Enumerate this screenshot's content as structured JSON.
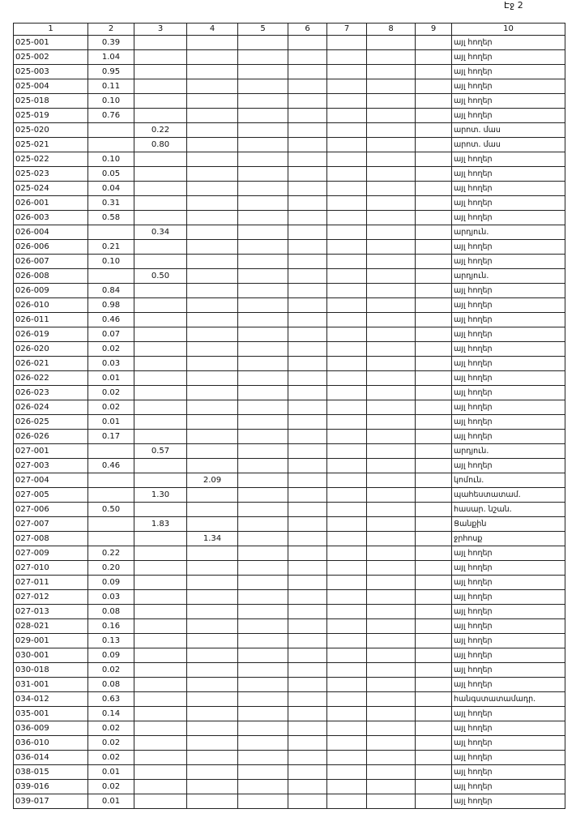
{
  "page_label": "Էջ 2",
  "table": {
    "header": [
      "1",
      "2",
      "3",
      "4",
      "5",
      "6",
      "7",
      "8",
      "9",
      "10"
    ],
    "rows": [
      [
        "025-001",
        "0.39",
        null,
        null,
        null,
        null,
        null,
        null,
        null,
        "այլ հողեր"
      ],
      [
        "025-002",
        "1.04",
        null,
        null,
        null,
        null,
        null,
        null,
        null,
        "այլ հողեր"
      ],
      [
        "025-003",
        "0.95",
        null,
        null,
        null,
        null,
        null,
        null,
        null,
        "այլ հողեր"
      ],
      [
        "025-004",
        "0.11",
        null,
        null,
        null,
        null,
        null,
        null,
        null,
        "այլ հողեր"
      ],
      [
        "025-018",
        "0.10",
        null,
        null,
        null,
        null,
        null,
        null,
        null,
        "այլ հողեր"
      ],
      [
        "025-019",
        "0.76",
        null,
        null,
        null,
        null,
        null,
        null,
        null,
        "այլ հողեր"
      ],
      [
        "025-020",
        null,
        "0.22",
        null,
        null,
        null,
        null,
        null,
        null,
        "արոտ. մաս"
      ],
      [
        "025-021",
        null,
        "0.80",
        null,
        null,
        null,
        null,
        null,
        null,
        "արոտ. մաս"
      ],
      [
        "025-022",
        "0.10",
        null,
        null,
        null,
        null,
        null,
        null,
        null,
        "այլ հողեր"
      ],
      [
        "025-023",
        "0.05",
        null,
        null,
        null,
        null,
        null,
        null,
        null,
        "այլ հողեր"
      ],
      [
        "025-024",
        "0.04",
        null,
        null,
        null,
        null,
        null,
        null,
        null,
        "այլ հողեր"
      ],
      [
        "026-001",
        "0.31",
        null,
        null,
        null,
        null,
        null,
        null,
        null,
        "այլ հողեր"
      ],
      [
        "026-003",
        "0.58",
        null,
        null,
        null,
        null,
        null,
        null,
        null,
        "այլ հողեր"
      ],
      [
        "026-004",
        null,
        "0.34",
        null,
        null,
        null,
        null,
        null,
        null,
        "արդյուն."
      ],
      [
        "026-006",
        "0.21",
        null,
        null,
        null,
        null,
        null,
        null,
        null,
        "այլ հողեր"
      ],
      [
        "026-007",
        "0.10",
        null,
        null,
        null,
        null,
        null,
        null,
        null,
        "այլ հողեր"
      ],
      [
        "026-008",
        null,
        "0.50",
        null,
        null,
        null,
        null,
        null,
        null,
        "արդյուն."
      ],
      [
        "026-009",
        "0.84",
        null,
        null,
        null,
        null,
        null,
        null,
        null,
        "այլ հողեր"
      ],
      [
        "026-010",
        "0.98",
        null,
        null,
        null,
        null,
        null,
        null,
        null,
        "այլ հողեր"
      ],
      [
        "026-011",
        "0.46",
        null,
        null,
        null,
        null,
        null,
        null,
        null,
        "այլ հողեր"
      ],
      [
        "026-019",
        "0.07",
        null,
        null,
        null,
        null,
        null,
        null,
        null,
        "այլ հողեր"
      ],
      [
        "026-020",
        "0.02",
        null,
        null,
        null,
        null,
        null,
        null,
        null,
        "այլ հողեր"
      ],
      [
        "026-021",
        "0.03",
        null,
        null,
        null,
        null,
        null,
        null,
        null,
        "այլ հողեր"
      ],
      [
        "026-022",
        "0.01",
        null,
        null,
        null,
        null,
        null,
        null,
        null,
        "այլ հողեր"
      ],
      [
        "026-023",
        "0.02",
        null,
        null,
        null,
        null,
        null,
        null,
        null,
        "այլ հողեր"
      ],
      [
        "026-024",
        "0.02",
        null,
        null,
        null,
        null,
        null,
        null,
        null,
        "այլ հողեր"
      ],
      [
        "026-025",
        "0.01",
        null,
        null,
        null,
        null,
        null,
        null,
        null,
        "այլ հողեր"
      ],
      [
        "026-026",
        "0.17",
        null,
        null,
        null,
        null,
        null,
        null,
        null,
        "այլ հողեր"
      ],
      [
        "027-001",
        null,
        "0.57",
        null,
        null,
        null,
        null,
        null,
        null,
        "արդյուն."
      ],
      [
        "027-003",
        "0.46",
        null,
        null,
        null,
        null,
        null,
        null,
        null,
        "այլ հողեր"
      ],
      [
        "027-004",
        null,
        null,
        "2.09",
        null,
        null,
        null,
        null,
        null,
        "կոմուն."
      ],
      [
        "027-005",
        null,
        "1.30",
        null,
        null,
        null,
        null,
        null,
        null,
        "պահեստատամ."
      ],
      [
        "027-006",
        "0.50",
        null,
        null,
        null,
        null,
        null,
        null,
        null,
        "հասար. նշան."
      ],
      [
        "027-007",
        null,
        "1.83",
        null,
        null,
        null,
        null,
        null,
        null,
        "Ցանքին"
      ],
      [
        "027-008",
        null,
        null,
        "1.34",
        null,
        null,
        null,
        null,
        null,
        "ջրհոսք"
      ],
      [
        "027-009",
        "0.22",
        null,
        null,
        null,
        null,
        null,
        null,
        null,
        "այլ հողեր"
      ],
      [
        "027-010",
        "0.20",
        null,
        null,
        null,
        null,
        null,
        null,
        null,
        "այլ հողեր"
      ],
      [
        "027-011",
        "0.09",
        null,
        null,
        null,
        null,
        null,
        null,
        null,
        "այլ հողեր"
      ],
      [
        "027-012",
        "0.03",
        null,
        null,
        null,
        null,
        null,
        null,
        null,
        "այլ հողեր"
      ],
      [
        "027-013",
        "0.08",
        null,
        null,
        null,
        null,
        null,
        null,
        null,
        "այլ հողեր"
      ],
      [
        "028-021",
        "0.16",
        null,
        null,
        null,
        null,
        null,
        null,
        null,
        "այլ հողեր"
      ],
      [
        "029-001",
        "0.13",
        null,
        null,
        null,
        null,
        null,
        null,
        null,
        "այլ հողեր"
      ],
      [
        "030-001",
        "0.09",
        null,
        null,
        null,
        null,
        null,
        null,
        null,
        "այլ հողեր"
      ],
      [
        "030-018",
        "0.02",
        null,
        null,
        null,
        null,
        null,
        null,
        null,
        "այլ հողեր"
      ],
      [
        "031-001",
        "0.08",
        null,
        null,
        null,
        null,
        null,
        null,
        null,
        "այլ հողեր"
      ],
      [
        "034-012",
        "0.63",
        null,
        null,
        null,
        null,
        null,
        null,
        null,
        "հանգստատամադր."
      ],
      [
        "035-001",
        "0.14",
        null,
        null,
        null,
        null,
        null,
        null,
        null,
        "այլ հողեր"
      ],
      [
        "036-009",
        "0.02",
        null,
        null,
        null,
        null,
        null,
        null,
        null,
        "այլ հողեր"
      ],
      [
        "036-010",
        "0.02",
        null,
        null,
        null,
        null,
        null,
        null,
        null,
        "այլ հողեր"
      ],
      [
        "036-014",
        "0.02",
        null,
        null,
        null,
        null,
        null,
        null,
        null,
        "այլ հողեր"
      ],
      [
        "038-015",
        "0.01",
        null,
        null,
        null,
        null,
        null,
        null,
        null,
        "այլ հողեր"
      ],
      [
        "039-016",
        "0.02",
        null,
        null,
        null,
        null,
        null,
        null,
        null,
        "այլ հողեր"
      ],
      [
        "039-017",
        "0.01",
        null,
        null,
        null,
        null,
        null,
        null,
        null,
        "այլ հողեր"
      ]
    ]
  }
}
